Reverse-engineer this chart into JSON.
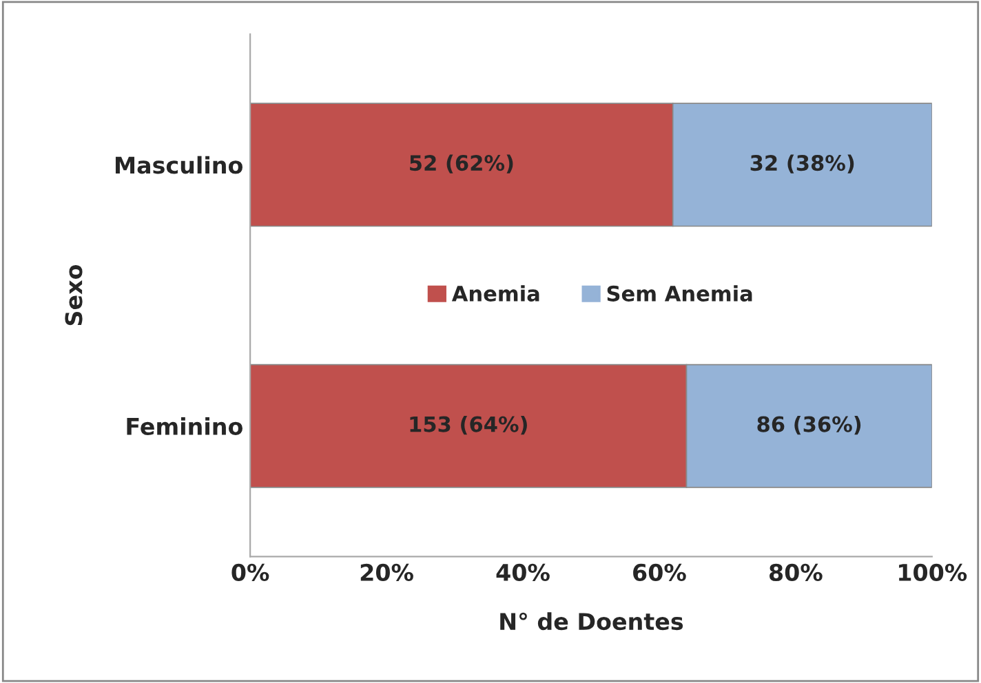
{
  "chart_data": {
    "type": "bar",
    "orientation": "horizontal",
    "stacked": true,
    "categories": [
      "Masculino",
      "Feminino"
    ],
    "series": [
      {
        "name": "Anemia",
        "color": "#c0504d",
        "values": [
          62,
          64
        ],
        "value_labels": [
          "52 (62%)",
          "153 (64%)"
        ]
      },
      {
        "name": "Sem Anemia",
        "color": "#95b3d7",
        "values": [
          38,
          36
        ],
        "value_labels": [
          "32 (38%)",
          "86 (36%)"
        ]
      }
    ],
    "xlim": [
      0,
      100
    ],
    "xticks": [
      {
        "value": 0,
        "label": "0%"
      },
      {
        "value": 20,
        "label": "20%"
      },
      {
        "value": 40,
        "label": "40%"
      },
      {
        "value": 60,
        "label": "60%"
      },
      {
        "value": 80,
        "label": "80%"
      },
      {
        "value": 100,
        "label": "100%"
      }
    ],
    "xlabel": "N° de Doentes",
    "ylabel": "Sexo",
    "legend": "center",
    "grid": false
  }
}
